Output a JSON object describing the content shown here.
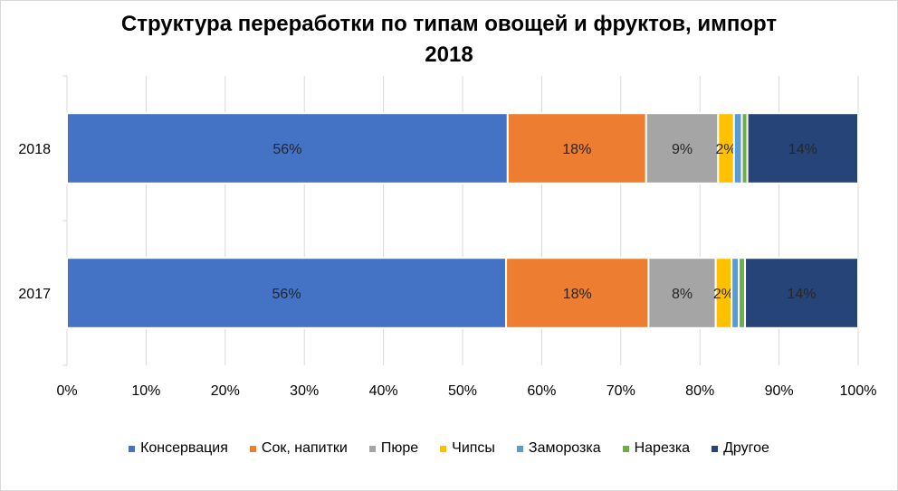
{
  "chart_data": {
    "type": "bar",
    "orientation": "horizontal",
    "stacked": "percent",
    "title_line1": "Структура переработки по типам овощей и фруктов, импорт",
    "title_line2": "2018",
    "categories": [
      "2018",
      "2017"
    ],
    "series": [
      {
        "name": "Консервация",
        "color": "#4472C4",
        "values": [
          55.7,
          55.5
        ],
        "labels": [
          "56%",
          "56%"
        ]
      },
      {
        "name": "Сок, напитки",
        "color": "#ED7D31",
        "values": [
          17.5,
          18.0
        ],
        "labels": [
          "18%",
          "18%"
        ]
      },
      {
        "name": "Пюре",
        "color": "#A5A5A5",
        "values": [
          9.1,
          8.5
        ],
        "labels": [
          "9%",
          "8%"
        ]
      },
      {
        "name": "Чипсы",
        "color": "#FFC000",
        "values": [
          2.0,
          2.0
        ],
        "labels": [
          "2%",
          "2%"
        ]
      },
      {
        "name": "Заморозка",
        "color": "#5B9BD5",
        "values": [
          1.0,
          0.9
        ],
        "labels": [
          "",
          ""
        ]
      },
      {
        "name": "Нарезка",
        "color": "#70AD47",
        "values": [
          0.7,
          0.8
        ],
        "labels": [
          "",
          ""
        ]
      },
      {
        "name": "Другое",
        "color": "#264478",
        "values": [
          14.0,
          14.3
        ],
        "labels": [
          "14%",
          "14%"
        ]
      }
    ],
    "xlim": [
      0,
      100
    ],
    "x_ticks": [
      "0%",
      "10%",
      "20%",
      "30%",
      "40%",
      "50%",
      "60%",
      "70%",
      "80%",
      "90%",
      "100%"
    ],
    "grid": "vertical",
    "legend_position": "bottom"
  }
}
